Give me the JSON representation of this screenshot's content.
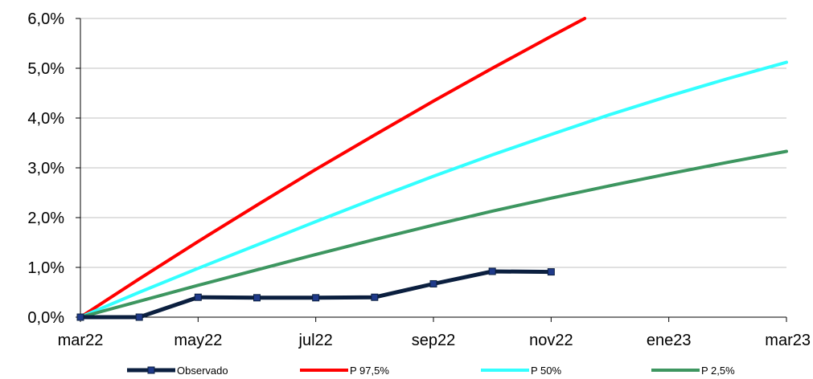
{
  "chart_data": {
    "type": "line",
    "x_ticks": [
      "mar22",
      "may22",
      "jul22",
      "sep22",
      "nov22",
      "ene23",
      "mar23"
    ],
    "y_ticks": [
      "0,0%",
      "1,0%",
      "2,0%",
      "3,0%",
      "4,0%",
      "5,0%",
      "6,0%"
    ],
    "ylim": [
      0,
      6
    ],
    "xlim": [
      "mar22",
      "mar23"
    ],
    "grid": "horizontal",
    "legend_position": "bottom",
    "series": [
      {
        "name": "Observado",
        "color": "#0b1f3f",
        "marker": "square",
        "points": [
          {
            "x": "mar22",
            "y": 0.0
          },
          {
            "x": "abr22",
            "y": 0.0
          },
          {
            "x": "may22",
            "y": 0.4
          },
          {
            "x": "jun22",
            "y": 0.39
          },
          {
            "x": "jul22",
            "y": 0.39
          },
          {
            "x": "ago22",
            "y": 0.4
          },
          {
            "x": "sep22",
            "y": 0.67
          },
          {
            "x": "oct22",
            "y": 0.92
          },
          {
            "x": "nov22",
            "y": 0.91
          }
        ]
      },
      {
        "name": "P 97,5%",
        "color": "#ff0000",
        "marker": "none",
        "points": [
          {
            "x": "mar22",
            "y": 0.0
          },
          {
            "x": "abr22",
            "y": 0.77
          },
          {
            "x": "may22",
            "y": 1.52
          },
          {
            "x": "jun22",
            "y": 2.25
          },
          {
            "x": "jul22",
            "y": 2.97
          },
          {
            "x": "ago22",
            "y": 3.66
          },
          {
            "x": "sep22",
            "y": 4.34
          },
          {
            "x": "oct22",
            "y": 5.0
          },
          {
            "x": "nov22",
            "y": 5.64
          },
          {
            "x": "dic22",
            "y": 6.27
          }
        ]
      },
      {
        "name": "P 50%",
        "color": "#33ffff",
        "marker": "none",
        "points": [
          {
            "x": "mar22",
            "y": 0.0
          },
          {
            "x": "abr22",
            "y": 0.5
          },
          {
            "x": "may22",
            "y": 0.98
          },
          {
            "x": "jun22",
            "y": 1.45
          },
          {
            "x": "jul22",
            "y": 1.92
          },
          {
            "x": "ago22",
            "y": 2.38
          },
          {
            "x": "sep22",
            "y": 2.83
          },
          {
            "x": "oct22",
            "y": 3.26
          },
          {
            "x": "nov22",
            "y": 3.67
          },
          {
            "x": "dic22",
            "y": 4.07
          },
          {
            "x": "ene23",
            "y": 4.44
          },
          {
            "x": "feb23",
            "y": 4.79
          },
          {
            "x": "mar23",
            "y": 5.12
          }
        ]
      },
      {
        "name": "P 2,5%",
        "color": "#3d9660",
        "marker": "none",
        "points": [
          {
            "x": "mar22",
            "y": 0.0
          },
          {
            "x": "abr22",
            "y": 0.32
          },
          {
            "x": "may22",
            "y": 0.64
          },
          {
            "x": "jun22",
            "y": 0.95
          },
          {
            "x": "jul22",
            "y": 1.26
          },
          {
            "x": "ago22",
            "y": 1.56
          },
          {
            "x": "sep22",
            "y": 1.85
          },
          {
            "x": "oct22",
            "y": 2.13
          },
          {
            "x": "nov22",
            "y": 2.39
          },
          {
            "x": "dic22",
            "y": 2.64
          },
          {
            "x": "ene23",
            "y": 2.88
          },
          {
            "x": "feb23",
            "y": 3.11
          },
          {
            "x": "mar23",
            "y": 3.33
          }
        ]
      }
    ]
  }
}
